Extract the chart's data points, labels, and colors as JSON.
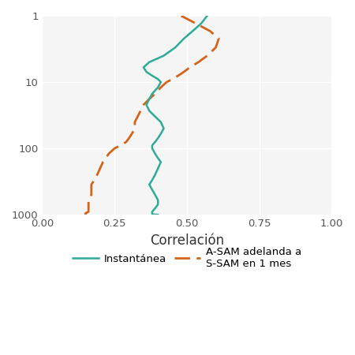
{
  "title": "",
  "xlabel": "Correlación",
  "ylabel": "",
  "xlim": [
    0.0,
    1.0
  ],
  "ylim_log": [
    1,
    1000
  ],
  "xticks": [
    0.0,
    0.25,
    0.5,
    0.75,
    1.0
  ],
  "yticks": [
    1,
    10,
    100,
    1000
  ],
  "outer_background": "#ffffff",
  "plot_background": "#f5f5f5",
  "grid_color": "#ffffff",
  "green_color": "#2eab96",
  "orange_color": "#d4641a",
  "legend_label_green": "Instantánea",
  "legend_label_orange": "A-SAM adelanda a\nS-SAM en 1 mes",
  "green_x": [
    0.57,
    0.55,
    0.52,
    0.49,
    0.46,
    0.42,
    0.37,
    0.35,
    0.36,
    0.38,
    0.4,
    0.41,
    0.4,
    0.38,
    0.37,
    0.36,
    0.37,
    0.39,
    0.41,
    0.42,
    0.41,
    0.4,
    0.39,
    0.38,
    0.38,
    0.39,
    0.4,
    0.41,
    0.4,
    0.39,
    0.38,
    0.37,
    0.38,
    0.39,
    0.4,
    0.4,
    0.39,
    0.38,
    0.38,
    0.38,
    0.39,
    0.4
  ],
  "green_y": [
    1,
    1.3,
    1.7,
    2.2,
    3,
    4,
    5,
    6,
    7,
    8,
    9,
    10,
    12,
    15,
    18,
    22,
    27,
    33,
    40,
    50,
    60,
    70,
    80,
    90,
    100,
    120,
    140,
    160,
    200,
    250,
    300,
    350,
    420,
    500,
    600,
    700,
    800,
    900,
    950,
    980,
    995,
    1000
  ],
  "orange_x": [
    0.48,
    0.53,
    0.58,
    0.61,
    0.6,
    0.57,
    0.54,
    0.51,
    0.49,
    0.47,
    0.45,
    0.43,
    0.41,
    0.39,
    0.37,
    0.35,
    0.34,
    0.33,
    0.32,
    0.32,
    0.31,
    0.3,
    0.29,
    0.27,
    0.25,
    0.23,
    0.22,
    0.21,
    0.2,
    0.19,
    0.18,
    0.17,
    0.17,
    0.17,
    0.16,
    0.16,
    0.16,
    0.16,
    0.15,
    0.15,
    0.15,
    0.15
  ],
  "orange_y": [
    1,
    1.3,
    1.7,
    2.2,
    3,
    4,
    5,
    6,
    7,
    8,
    9,
    10,
    12,
    15,
    18,
    22,
    27,
    33,
    40,
    50,
    60,
    70,
    80,
    90,
    100,
    120,
    140,
    160,
    200,
    250,
    300,
    350,
    420,
    500,
    600,
    700,
    800,
    900,
    950,
    980,
    995,
    1000
  ]
}
